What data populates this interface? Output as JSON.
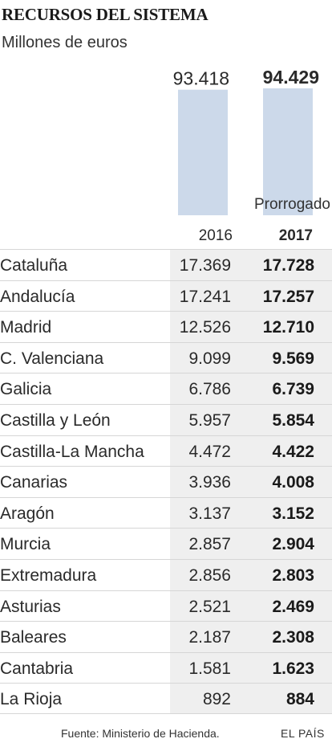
{
  "title": "RECURSOS DEL SISTEMA",
  "subtitle": "Millones de euros",
  "source": "Fuente: Ministerio de Hacienda.",
  "brand": "EL PAÍS",
  "colors": {
    "bar": "#ccd9ea",
    "row_shade": "#efefef",
    "rule": "#d6d6d6"
  },
  "chart_data": [
    {
      "type": "bar",
      "categories": [
        "2016",
        "2017"
      ],
      "values": [
        93418,
        94429
      ],
      "value_labels": [
        "93.418",
        "94.429"
      ],
      "annotation": "Prorrogado",
      "annotation_category": "2017",
      "ylim": [
        0,
        94429
      ]
    },
    {
      "type": "table",
      "columns": [
        "",
        "2016",
        "2017"
      ],
      "rows": [
        [
          "Cataluña",
          "17.369",
          "17.728"
        ],
        [
          "Andalucía",
          "17.241",
          "17.257"
        ],
        [
          "Madrid",
          "12.526",
          "12.710"
        ],
        [
          "C. Valenciana",
          "9.099",
          "9.569"
        ],
        [
          "Galicia",
          "6.786",
          "6.739"
        ],
        [
          "Castilla y León",
          "5.957",
          "5.854"
        ],
        [
          "Castilla-La Mancha",
          "4.472",
          "4.422"
        ],
        [
          "Canarias",
          "3.936",
          "4.008"
        ],
        [
          "Aragón",
          "3.137",
          "3.152"
        ],
        [
          "Murcia",
          "2.857",
          "2.904"
        ],
        [
          "Extremadura",
          "2.856",
          "2.803"
        ],
        [
          "Asturias",
          "2.521",
          "2.469"
        ],
        [
          "Baleares",
          "2.187",
          "2.308"
        ],
        [
          "Cantabria",
          "1.581",
          "1.623"
        ],
        [
          "La Rioja",
          "892",
          "884"
        ]
      ]
    }
  ]
}
